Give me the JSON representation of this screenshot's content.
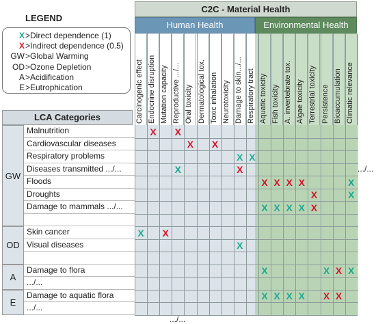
{
  "legend": {
    "title": "LEGEND",
    "items": [
      {
        "code": "X",
        "text": ">Direct dependence (1)",
        "color": "#1daa8f"
      },
      {
        "code": "X",
        "text": ">Indirect dependence (0.5)",
        "color": "#d3162b"
      },
      {
        "code": "GW",
        "text": ">Global Warming"
      },
      {
        "code": "OD",
        "text": ">Ozone Depletion"
      },
      {
        "code": "A",
        "text": ">Acidification"
      },
      {
        "code": "E",
        "text": ">Eutrophication"
      }
    ]
  },
  "header": {
    "title": "C2C - Material Health",
    "human_health": "Human Health",
    "environmental_health": "Environmental Health"
  },
  "lca_title": "LCA Categories",
  "columns": [
    "Carcinogenic effect",
    "Endocrine disruption",
    "Mutation capacity",
    "Reproductive .../...",
    "Oral toxicity",
    "Dermatological tox.",
    "Toxic inhalation",
    "Neurotoxicity",
    "Damage to skin.../...",
    "Respiratory tract",
    "Aquatic toxicity",
    "Fish toxicity",
    "A. invertebrate tox.",
    "Algae toxicity",
    "Terrestrial toxicity",
    "Persistence",
    "Bioaccumulation",
    "Climatic relevance"
  ],
  "groups": [
    {
      "code": "GW",
      "rows": [
        {
          "label": "Malnutrition",
          "marks": [
            [
              1,
              "red"
            ],
            [
              3,
              "red"
            ]
          ]
        },
        {
          "label": "Cardiovascular diseases",
          "marks": [
            [
              4,
              "red"
            ],
            [
              6,
              "red"
            ]
          ]
        },
        {
          "label": "Respiratory problems",
          "marks": [
            [
              8,
              "green"
            ],
            [
              9,
              "green"
            ]
          ]
        },
        {
          "label": "Diseases transmitted .../...",
          "marks": [
            [
              3,
              "green"
            ],
            [
              8,
              "red"
            ]
          ]
        },
        {
          "label": "Floods",
          "marks": [
            [
              10,
              "red"
            ],
            [
              11,
              "red"
            ],
            [
              12,
              "red"
            ],
            [
              13,
              "red"
            ],
            [
              17,
              "green"
            ]
          ]
        },
        {
          "label": "Droughts",
          "marks": [
            [
              14,
              "red"
            ],
            [
              17,
              "green"
            ]
          ]
        },
        {
          "label": "Damage to mammals .../...",
          "marks": [
            [
              10,
              "green"
            ],
            [
              11,
              "green"
            ],
            [
              12,
              "green"
            ],
            [
              13,
              "green"
            ],
            [
              14,
              "red"
            ]
          ]
        },
        {
          "label": "",
          "marks": []
        }
      ]
    },
    {
      "code": "OD",
      "rows": [
        {
          "label": "Skin cancer",
          "marks": [
            [
              0,
              "green"
            ],
            [
              2,
              "red"
            ]
          ]
        },
        {
          "label": "Visual diseases",
          "marks": [
            [
              8,
              "green"
            ]
          ]
        },
        {
          "label": "",
          "marks": []
        }
      ]
    },
    {
      "code": "A",
      "rows": [
        {
          "label": "Damage to flora",
          "marks": [
            [
              10,
              "green"
            ],
            [
              15,
              "green"
            ],
            [
              16,
              "red"
            ],
            [
              17,
              "green"
            ]
          ]
        },
        {
          "label": ".../...",
          "marks": []
        }
      ]
    },
    {
      "code": "E",
      "rows": [
        {
          "label": "Damage to aquatic flora",
          "marks": [
            [
              10,
              "green"
            ],
            [
              11,
              "green"
            ],
            [
              12,
              "green"
            ],
            [
              13,
              "green"
            ],
            [
              15,
              "red"
            ],
            [
              16,
              "red"
            ]
          ]
        },
        {
          "label": ".../...",
          "marks": []
        }
      ]
    }
  ],
  "ellipsis_right": ".../...",
  "ellipsis_bottom": ".../...",
  "mark_symbol": "X",
  "colors": {
    "green": "#1daa8f",
    "red": "#d3162b",
    "human_health": "#6b96b6",
    "environmental_health": "#5e8a5e"
  }
}
